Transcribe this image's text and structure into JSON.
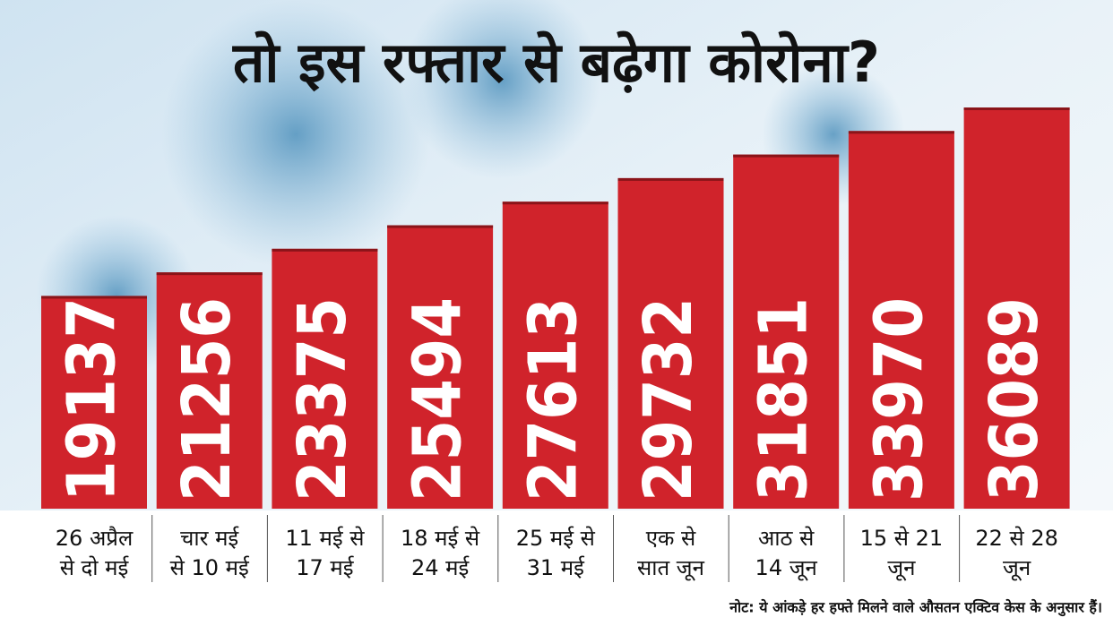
{
  "chart_data": {
    "type": "bar",
    "title": "तो इस रफ्तार से बढ़ेगा कोरोना?",
    "categories": [
      [
        "26 अप्रैल",
        "से दो मई"
      ],
      [
        "चार मई",
        "से 10 मई"
      ],
      [
        "11 मई से",
        "17 मई"
      ],
      [
        "18 मई से",
        "24 मई"
      ],
      [
        "25 मई से",
        "31 मई"
      ],
      [
        "एक से",
        "सात जून"
      ],
      [
        "आठ से",
        "14 जून"
      ],
      [
        "15 से 21",
        "जून"
      ],
      [
        "22 से 28",
        "जून"
      ]
    ],
    "values": [
      19137,
      21256,
      23375,
      25494,
      27613,
      29732,
      31851,
      33970,
      36089
    ],
    "color": "#d0232b",
    "note": "नोट: ये आंकड़े हर हफ्ते मिलने वाले औसतन एक्टिव केस के अनुसार हैं।"
  }
}
